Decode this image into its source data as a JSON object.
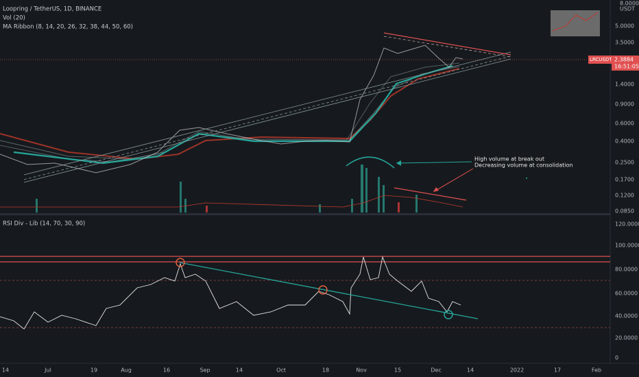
{
  "legend": {
    "symbol": "Loopring / TetherUS, 1D, BINANCE",
    "volume": "Vol (20)",
    "ribbon": "MA Ribbon (8, 14, 20, 26, 32, 38, 44, 50, 60)",
    "rsi": "RSI Div - Lib (14, 70, 30, 90)"
  },
  "price_axis": {
    "top": "8.0000",
    "currency": "USDT",
    "labels": [
      "5.0000",
      "3.5000",
      "1.4000",
      "0.9000",
      "0.6000",
      "0.4000",
      "0.2500",
      "0.1700",
      "0.1200",
      "0.0850"
    ]
  },
  "price_tag": {
    "symbol": "LRCUSDT",
    "price": "2.3884",
    "countdown": "16:51:05"
  },
  "rsi_axis": {
    "labels": [
      "120.0000",
      "100.0000",
      "80.0000",
      "60.0000",
      "40.0000",
      "20.0000",
      "0"
    ]
  },
  "time_axis": {
    "labels": [
      "14",
      "Jul",
      "19",
      "Aug",
      "16",
      "Sep",
      "14",
      "Oct",
      "18",
      "Nov",
      "15",
      "Dec",
      "14",
      "2022",
      "17",
      "Feb"
    ]
  },
  "annotation": {
    "line1": "High volume at break out",
    "line2": "Decreasing volume at consolidation"
  }
}
